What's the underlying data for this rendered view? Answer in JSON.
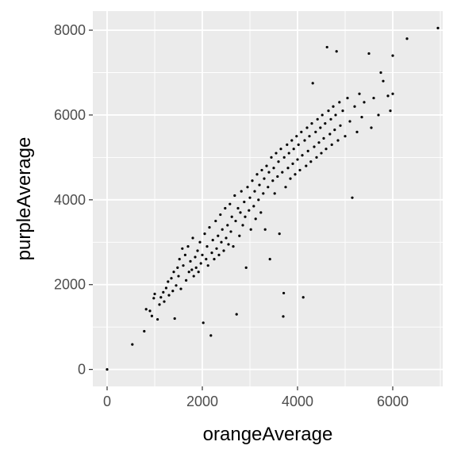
{
  "chart_data": {
    "type": "scatter",
    "xlabel": "orangeAverage",
    "ylabel": "purpleAverage",
    "xlim": [
      -300,
      7050
    ],
    "ylim": [
      -400,
      8450
    ],
    "x_ticks": [
      0,
      2000,
      4000,
      6000
    ],
    "x_tick_labels": [
      "0",
      "2000",
      "4000",
      "6000"
    ],
    "y_ticks": [
      0,
      2000,
      4000,
      6000,
      8000
    ],
    "y_tick_labels": [
      "0",
      "2000",
      "4000",
      "6000",
      "8000"
    ],
    "grid": true,
    "legend": "none",
    "colors": {
      "panel": "#ebebeb",
      "grid": "#ffffff",
      "point": "#000000",
      "tick_text": "#4d4d4d"
    },
    "series": [
      {
        "points": [
          [
            0,
            0
          ],
          [
            530,
            590
          ],
          [
            780,
            900
          ],
          [
            820,
            1420
          ],
          [
            900,
            1380
          ],
          [
            940,
            1260
          ],
          [
            980,
            1680
          ],
          [
            1000,
            1780
          ],
          [
            1060,
            1180
          ],
          [
            1100,
            1530
          ],
          [
            1130,
            1700
          ],
          [
            1180,
            1820
          ],
          [
            1200,
            1600
          ],
          [
            1240,
            1920
          ],
          [
            1280,
            2070
          ],
          [
            1300,
            1750
          ],
          [
            1350,
            2150
          ],
          [
            1380,
            1850
          ],
          [
            1400,
            2300
          ],
          [
            1420,
            1200
          ],
          [
            1450,
            1980
          ],
          [
            1480,
            2400
          ],
          [
            1500,
            2200
          ],
          [
            1520,
            2600
          ],
          [
            1550,
            1900
          ],
          [
            1580,
            2850
          ],
          [
            1600,
            2450
          ],
          [
            1640,
            2700
          ],
          [
            1660,
            2100
          ],
          [
            1700,
            2900
          ],
          [
            1720,
            2300
          ],
          [
            1750,
            2550
          ],
          [
            1780,
            2350
          ],
          [
            1800,
            3100
          ],
          [
            1820,
            2200
          ],
          [
            1850,
            2650
          ],
          [
            1870,
            2400
          ],
          [
            1900,
            2800
          ],
          [
            1920,
            2300
          ],
          [
            1950,
            3000
          ],
          [
            1970,
            2500
          ],
          [
            2000,
            2700
          ],
          [
            2020,
            1100
          ],
          [
            2050,
            3200
          ],
          [
            2080,
            2600
          ],
          [
            2100,
            2900
          ],
          [
            2120,
            2450
          ],
          [
            2150,
            3350
          ],
          [
            2180,
            800
          ],
          [
            2200,
            2750
          ],
          [
            2220,
            3050
          ],
          [
            2250,
            2600
          ],
          [
            2280,
            3500
          ],
          [
            2300,
            2850
          ],
          [
            2330,
            3150
          ],
          [
            2350,
            2700
          ],
          [
            2380,
            3650
          ],
          [
            2400,
            3000
          ],
          [
            2420,
            3300
          ],
          [
            2450,
            2800
          ],
          [
            2480,
            3800
          ],
          [
            2500,
            3100
          ],
          [
            2530,
            3400
          ],
          [
            2550,
            2950
          ],
          [
            2580,
            3900
          ],
          [
            2600,
            3250
          ],
          [
            2620,
            3600
          ],
          [
            2650,
            2900
          ],
          [
            2680,
            4100
          ],
          [
            2700,
            3500
          ],
          [
            2720,
            1300
          ],
          [
            2750,
            3800
          ],
          [
            2780,
            3150
          ],
          [
            2800,
            3700
          ],
          [
            2820,
            4200
          ],
          [
            2850,
            3400
          ],
          [
            2880,
            3950
          ],
          [
            2900,
            3600
          ],
          [
            2920,
            2400
          ],
          [
            2950,
            4300
          ],
          [
            2980,
            3750
          ],
          [
            3000,
            4050
          ],
          [
            3020,
            3300
          ],
          [
            3050,
            4450
          ],
          [
            3080,
            3850
          ],
          [
            3100,
            4200
          ],
          [
            3120,
            3550
          ],
          [
            3150,
            4600
          ],
          [
            3180,
            4000
          ],
          [
            3200,
            4350
          ],
          [
            3230,
            3700
          ],
          [
            3250,
            4700
          ],
          [
            3280,
            4150
          ],
          [
            3300,
            4500
          ],
          [
            3320,
            3300
          ],
          [
            3350,
            4800
          ],
          [
            3380,
            4300
          ],
          [
            3400,
            4650
          ],
          [
            3420,
            2600
          ],
          [
            3450,
            5000
          ],
          [
            3480,
            4450
          ],
          [
            3500,
            4750
          ],
          [
            3520,
            4150
          ],
          [
            3550,
            5100
          ],
          [
            3580,
            4550
          ],
          [
            3600,
            4900
          ],
          [
            3620,
            3200
          ],
          [
            3650,
            5200
          ],
          [
            3680,
            4650
          ],
          [
            3700,
            1250
          ],
          [
            3710,
            1800
          ],
          [
            3720,
            5000
          ],
          [
            3750,
            4300
          ],
          [
            3780,
            5300
          ],
          [
            3800,
            4750
          ],
          [
            3820,
            5100
          ],
          [
            3850,
            4500
          ],
          [
            3880,
            5400
          ],
          [
            3900,
            4850
          ],
          [
            3920,
            5200
          ],
          [
            3950,
            4600
          ],
          [
            3980,
            5500
          ],
          [
            4000,
            4950
          ],
          [
            4020,
            5300
          ],
          [
            4050,
            4700
          ],
          [
            4080,
            5600
          ],
          [
            4100,
            5050
          ],
          [
            4120,
            1700
          ],
          [
            4150,
            5400
          ],
          [
            4180,
            4800
          ],
          [
            4200,
            5700
          ],
          [
            4220,
            5150
          ],
          [
            4250,
            5500
          ],
          [
            4280,
            4900
          ],
          [
            4300,
            5800
          ],
          [
            4320,
            6750
          ],
          [
            4350,
            5250
          ],
          [
            4380,
            5600
          ],
          [
            4400,
            5000
          ],
          [
            4420,
            5900
          ],
          [
            4450,
            5350
          ],
          [
            4480,
            5700
          ],
          [
            4500,
            5100
          ],
          [
            4520,
            6000
          ],
          [
            4550,
            5450
          ],
          [
            4580,
            5800
          ],
          [
            4600,
            5200
          ],
          [
            4620,
            7600
          ],
          [
            4650,
            6100
          ],
          [
            4680,
            5550
          ],
          [
            4700,
            5900
          ],
          [
            4720,
            5300
          ],
          [
            4750,
            6200
          ],
          [
            4780,
            5650
          ],
          [
            4800,
            6000
          ],
          [
            4820,
            7500
          ],
          [
            4850,
            5400
          ],
          [
            4880,
            6300
          ],
          [
            4900,
            5750
          ],
          [
            4950,
            6100
          ],
          [
            5000,
            5500
          ],
          [
            5050,
            6400
          ],
          [
            5100,
            5850
          ],
          [
            5150,
            4050
          ],
          [
            5200,
            6200
          ],
          [
            5250,
            5600
          ],
          [
            5300,
            6500
          ],
          [
            5350,
            5950
          ],
          [
            5400,
            6300
          ],
          [
            5500,
            7450
          ],
          [
            5550,
            5700
          ],
          [
            5600,
            6400
          ],
          [
            5700,
            6000
          ],
          [
            5750,
            7000
          ],
          [
            5800,
            6800
          ],
          [
            5900,
            6450
          ],
          [
            5950,
            6100
          ],
          [
            6000,
            7400
          ],
          [
            6000,
            6500
          ],
          [
            6300,
            7800
          ],
          [
            6950,
            8050
          ]
        ]
      }
    ]
  }
}
